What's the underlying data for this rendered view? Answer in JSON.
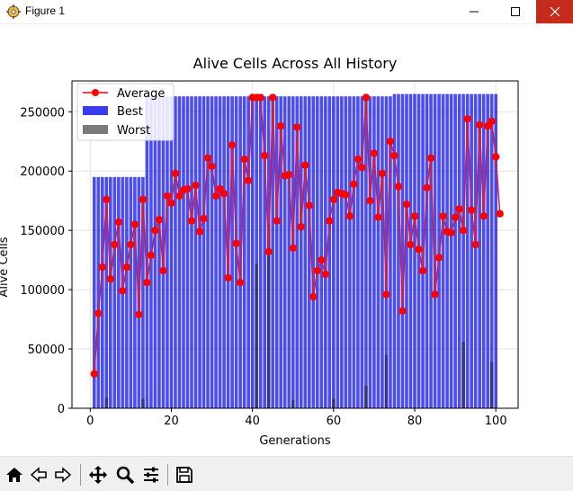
{
  "window": {
    "title": "Figure 1",
    "icons": [
      "figure-app-icon",
      "minimize-icon",
      "maximize-icon",
      "close-icon"
    ]
  },
  "toolbar": {
    "tools": [
      "home-icon",
      "back-arrow-icon",
      "forward-arrow-icon",
      "pan-icon",
      "zoom-icon",
      "configure-subplots-icon",
      "save-icon"
    ]
  },
  "chart_data": {
    "type": "bar",
    "title": "Alive Cells Across All History",
    "xlabel": "Generations",
    "ylabel": "Alive Cells",
    "xlim": [
      -4.5,
      105.5
    ],
    "ylim": [
      0,
      276000
    ],
    "xticks": [
      0,
      20,
      40,
      60,
      80,
      100
    ],
    "yticks": [
      0,
      50000,
      100000,
      150000,
      200000,
      250000
    ],
    "grid": true,
    "legend_position": "top-left",
    "colors": {
      "average": "#ff0000",
      "average_line": "#d81b3c",
      "best": "#0000ee",
      "worst": "#222222"
    },
    "series": [
      {
        "name": "Best",
        "segments": [
          {
            "x_from": 1,
            "x_to": 13,
            "value": 195000
          },
          {
            "x_from": 14,
            "x_to": 74,
            "value": 263000
          },
          {
            "x_from": 75,
            "x_to": 100,
            "value": 265000
          }
        ]
      },
      {
        "name": "Worst",
        "points": [
          {
            "x": 4,
            "y": 9000
          },
          {
            "x": 13,
            "y": 8000
          },
          {
            "x": 41,
            "y": 122000
          },
          {
            "x": 44,
            "y": 155000
          },
          {
            "x": 50,
            "y": 7000
          },
          {
            "x": 60,
            "y": 8000
          },
          {
            "x": 68,
            "y": 19000
          },
          {
            "x": 73,
            "y": 45000
          },
          {
            "x": 92,
            "y": 56000
          },
          {
            "x": 99,
            "y": 39000
          }
        ]
      },
      {
        "name": "Average",
        "x": [
          1,
          2,
          3,
          4,
          5,
          6,
          7,
          8,
          9,
          10,
          11,
          12,
          13,
          14,
          15,
          16,
          17,
          18,
          19,
          20,
          21,
          22,
          23,
          24,
          25,
          26,
          27,
          28,
          29,
          30,
          31,
          32,
          33,
          34,
          35,
          36,
          37,
          38,
          39,
          40,
          41,
          42,
          43,
          44,
          45,
          46,
          47,
          48,
          49,
          50,
          51,
          52,
          53,
          54,
          55,
          56,
          57,
          58,
          59,
          60,
          61,
          62,
          63,
          64,
          65,
          66,
          67,
          68,
          69,
          70,
          71,
          72,
          73,
          74,
          75,
          76,
          77,
          78,
          79,
          80,
          81,
          82,
          83,
          84,
          85,
          86,
          87,
          88,
          89,
          90,
          91,
          92,
          93,
          94,
          95,
          96,
          97,
          98,
          99,
          100,
          101
        ],
        "values": [
          29000,
          80000,
          119000,
          176000,
          109000,
          138000,
          157000,
          99000,
          119000,
          138000,
          155000,
          79000,
          176000,
          106000,
          129000,
          150000,
          159000,
          116000,
          179000,
          173000,
          198000,
          179000,
          184000,
          185000,
          158000,
          188000,
          149000,
          160000,
          211000,
          204000,
          179000,
          185000,
          181000,
          110000,
          222000,
          139000,
          106000,
          210000,
          192000,
          262000,
          262000,
          262000,
          213000,
          132000,
          262000,
          158000,
          238000,
          196000,
          197000,
          135000,
          237000,
          153000,
          205000,
          171000,
          94000,
          116000,
          125000,
          113000,
          158000,
          176000,
          182000,
          181000,
          180000,
          162000,
          189000,
          210000,
          203000,
          262000,
          175000,
          215000,
          161000,
          198000,
          96000,
          225000,
          213000,
          187000,
          82000,
          172000,
          138000,
          162000,
          134000,
          116000,
          186000,
          211000,
          96000,
          127000,
          162000,
          149000,
          148000,
          161000,
          168000,
          150000,
          244000,
          167000,
          138000,
          239000,
          162000,
          238000,
          242000,
          212000,
          164000
        ]
      }
    ]
  }
}
